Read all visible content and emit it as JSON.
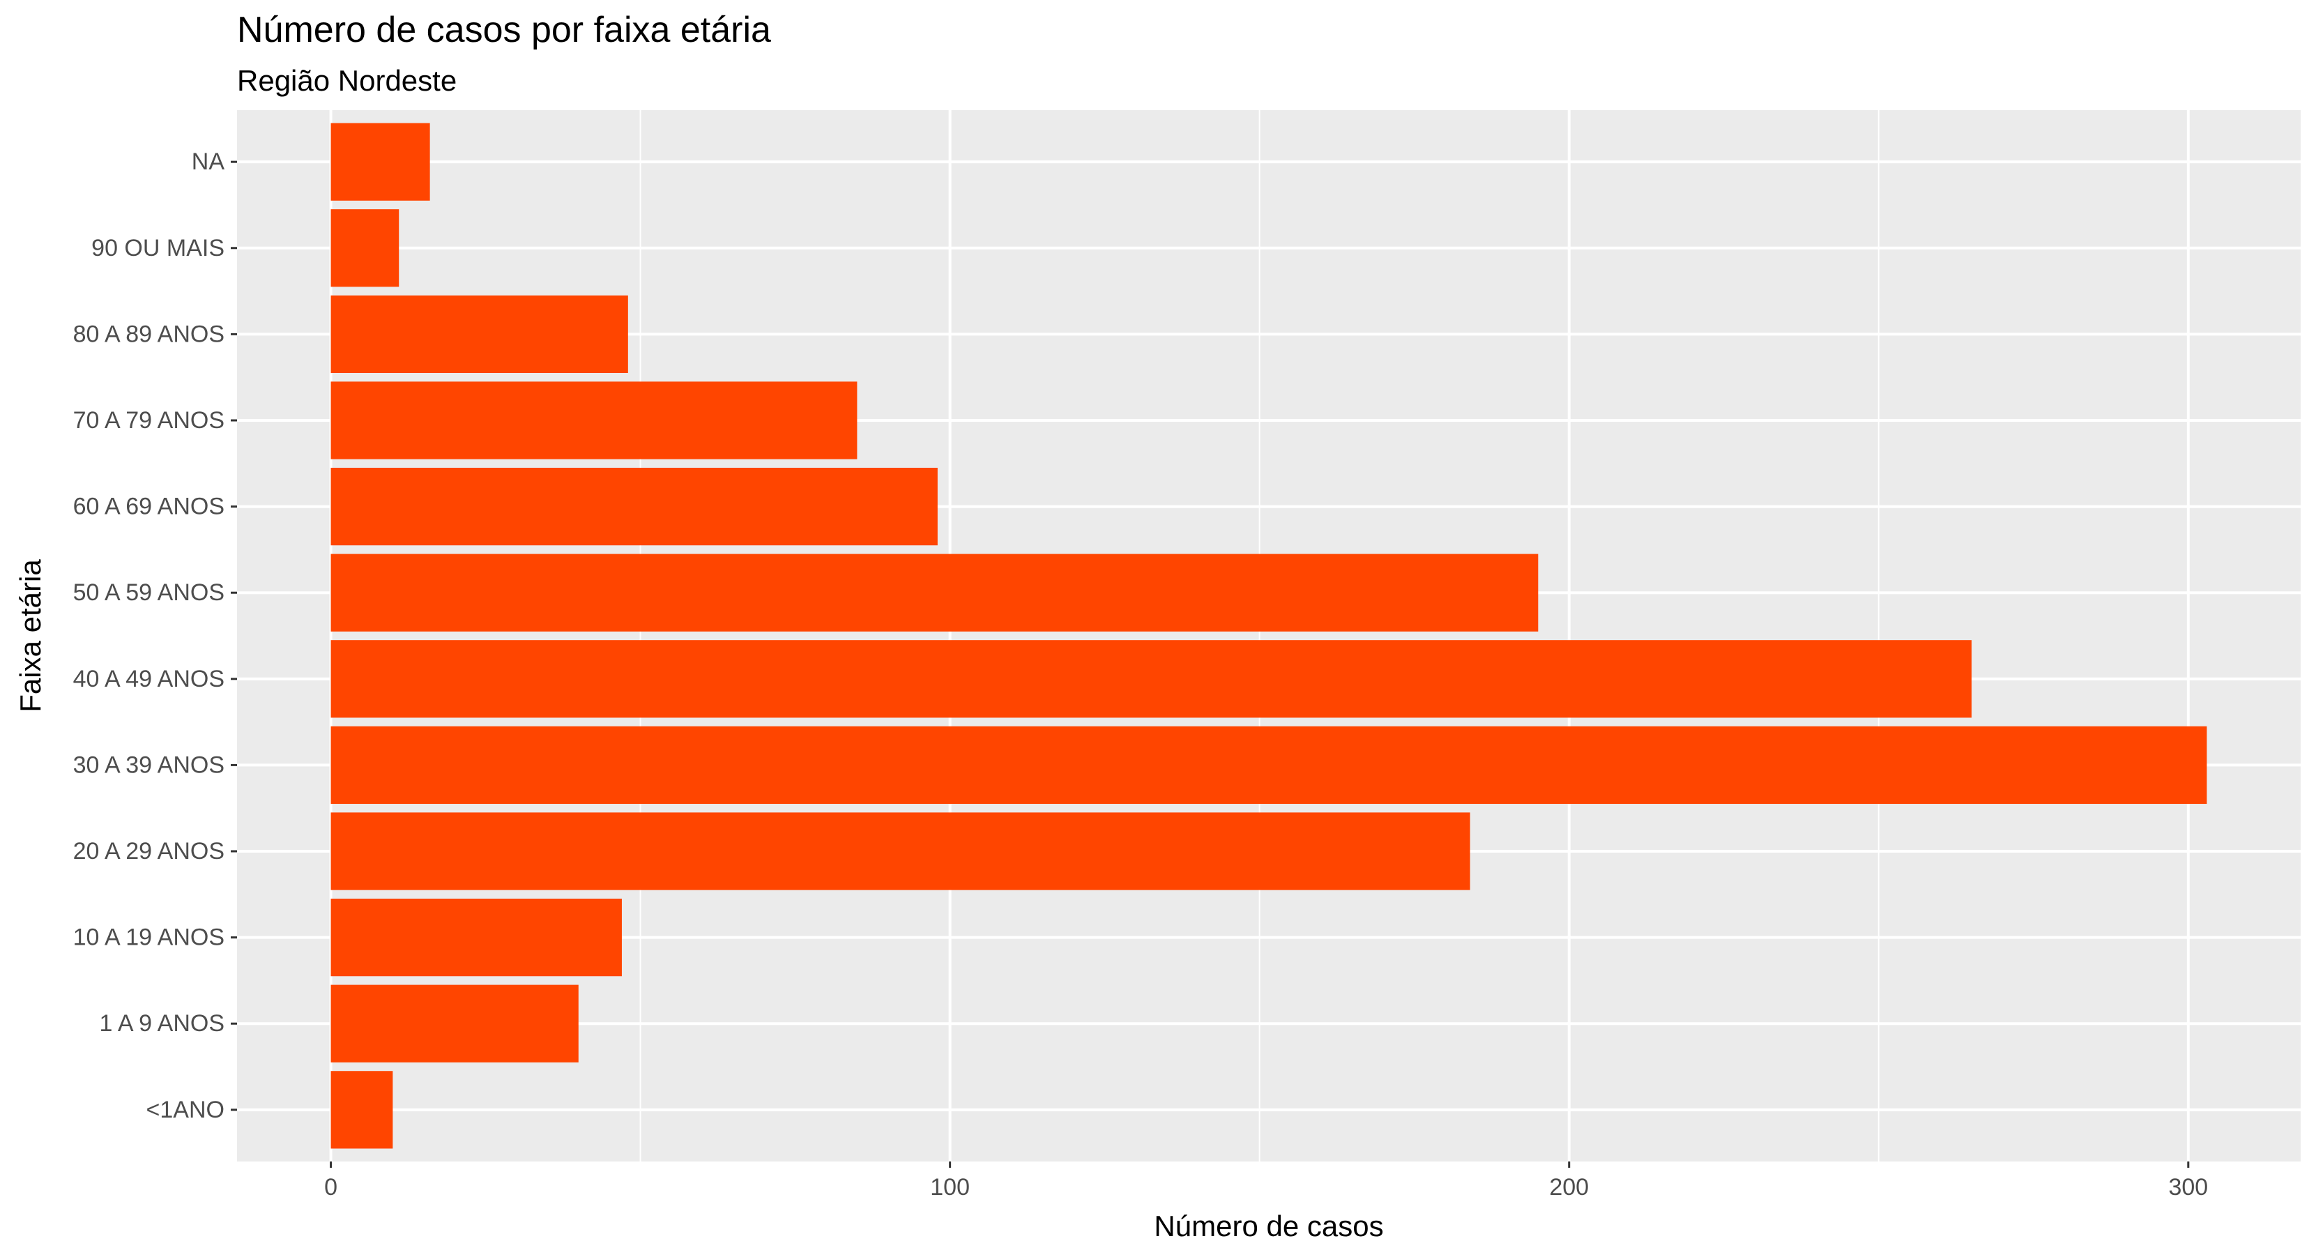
{
  "chart_data": {
    "type": "bar",
    "orientation": "horizontal",
    "title": "Número de casos por faixa etária",
    "subtitle": "Região Nordeste",
    "xlabel": "Número de casos",
    "ylabel": "Faixa etária",
    "categories": [
      "<1ANO",
      "1 A 9 ANOS",
      "10 A 19 ANOS",
      "20 A 29 ANOS",
      "30 A 39 ANOS",
      "40 A 49 ANOS",
      "50 A 59 ANOS",
      "60 A 69 ANOS",
      "70 A 79 ANOS",
      "80 A 89 ANOS",
      "90 OU MAIS",
      "NA"
    ],
    "values": [
      10,
      40,
      47,
      184,
      303,
      265,
      195,
      98,
      85,
      48,
      11,
      16
    ],
    "xlim": [
      -15.15,
      318.15
    ],
    "xticks": [
      0,
      100,
      200,
      300
    ],
    "grid": true,
    "legend": "none"
  },
  "colors": {
    "bar": "#FF4500",
    "panel_background": "#EBEBEB",
    "grid": "#FFFFFF",
    "tick_text": "#4D4D4D",
    "title_text": "#000000"
  }
}
